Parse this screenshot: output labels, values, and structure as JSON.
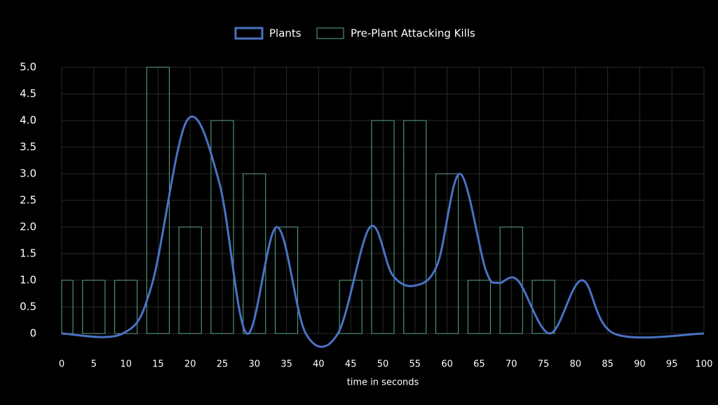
{
  "chart_data": {
    "type": "combo",
    "x_label": "time in seconds",
    "xlim": [
      0,
      100
    ],
    "xticks": [
      0,
      5,
      10,
      15,
      20,
      25,
      30,
      35,
      40,
      45,
      50,
      55,
      60,
      65,
      70,
      75,
      80,
      85,
      90,
      95,
      100
    ],
    "ylim": [
      0,
      5
    ],
    "yticks": [
      0,
      0.5,
      {
        "value": 1,
        "label": "1.0"
      },
      1.5,
      {
        "value": 2,
        "label": "2.0"
      },
      2.5,
      {
        "value": 3,
        "label": "3.0"
      },
      3.5,
      {
        "value": 4,
        "label": "4.0"
      },
      4.5,
      {
        "value": 5,
        "label": "5.0"
      }
    ],
    "grid": true,
    "legend": "top",
    "series": [
      {
        "name": "Plants",
        "type": "line",
        "color": "#4a72c4",
        "x": [
          0,
          9.5,
          14,
          19.5,
          24.5,
          28.8,
          33.5,
          38,
          43,
          48,
          51.5,
          55,
          58.5,
          62,
          66,
          68,
          71,
          76,
          81,
          86,
          100
        ],
        "values": [
          0,
          0,
          0.9,
          4,
          2.85,
          0,
          2,
          0,
          0,
          2,
          1.1,
          0.9,
          1.3,
          3,
          1.2,
          0.95,
          1.0,
          0,
          1,
          0,
          0
        ]
      },
      {
        "name": "Pre-Plant Attacking Kills",
        "type": "bar",
        "color": "#5fa98a",
        "x": [
          0,
          5,
          10,
          15,
          20,
          25,
          30,
          35,
          40,
          45,
          50,
          55,
          60,
          65,
          70,
          75
        ],
        "values": [
          1,
          1,
          1,
          5,
          2,
          4,
          3,
          2,
          0,
          1,
          4,
          4,
          3,
          1,
          2,
          1
        ]
      }
    ]
  }
}
